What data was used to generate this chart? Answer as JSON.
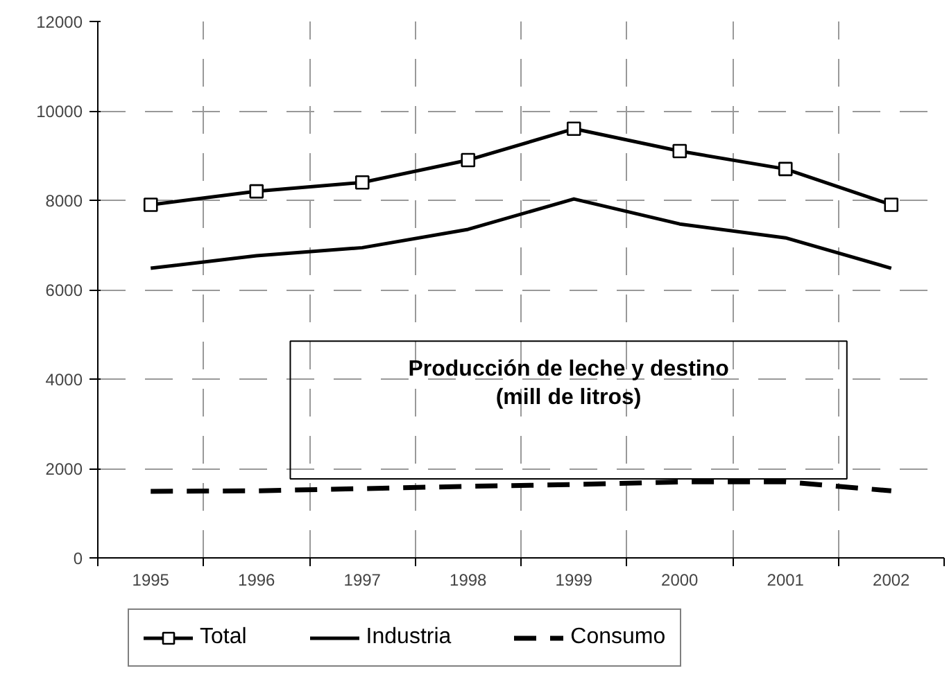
{
  "chart_data": {
    "type": "line",
    "title": "Producción de leche y destino\n(mill de litros)",
    "categories": [
      "1995",
      "1996",
      "1997",
      "1998",
      "1999",
      "2000",
      "2001",
      "2002"
    ],
    "series": [
      {
        "name": "Total",
        "color": "#000000",
        "marker": "square",
        "line_style": "solid",
        "values": [
          7900,
          8200,
          8400,
          8900,
          9600,
          9100,
          8700,
          7900
        ]
      },
      {
        "name": "Industria",
        "color": "#000000",
        "marker": "none",
        "line_style": "solid",
        "values": [
          6480,
          6760,
          6940,
          7350,
          8030,
          7470,
          7160,
          6480
        ]
      },
      {
        "name": "Consumo",
        "color": "#000000",
        "marker": "none",
        "line_style": "dashed",
        "values": [
          1490,
          1500,
          1550,
          1600,
          1640,
          1700,
          1700,
          1500
        ]
      }
    ],
    "ylim": [
      0,
      12000
    ],
    "yticks": [
      0,
      2000,
      4000,
      6000,
      8000,
      10000,
      12000
    ],
    "grid": true,
    "legend": "bottom"
  }
}
